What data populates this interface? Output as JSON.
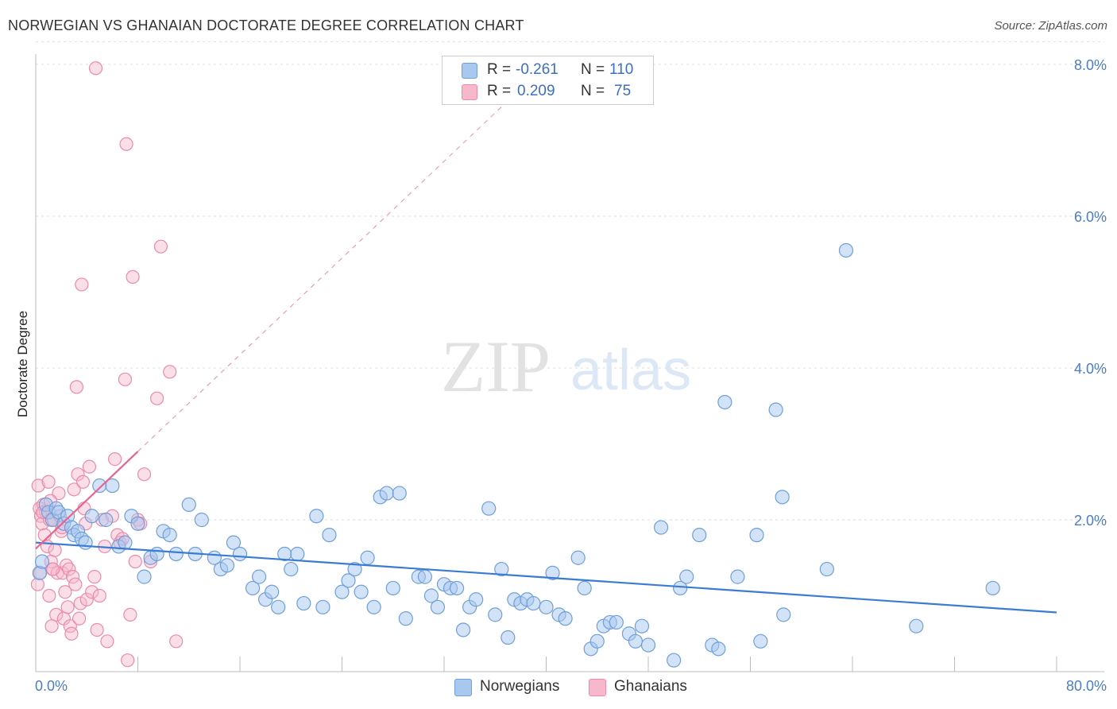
{
  "header": {
    "title": "NORWEGIAN VS GHANAIAN DOCTORATE DEGREE CORRELATION CHART",
    "source": "Source: ZipAtlas.com"
  },
  "legend": {
    "norwegian": {
      "r_label": "R =",
      "r_value": "-0.261",
      "n_label": "N =",
      "n_value": "110"
    },
    "ghanaian": {
      "r_label": "R =",
      "r_value": "0.209",
      "n_label": "N =",
      "n_value": "75"
    }
  },
  "bottom_legend": {
    "norwegians": "Norwegians",
    "ghanaians": "Ghanaians"
  },
  "watermark": {
    "zip": "ZIP",
    "atlas": "atlas"
  },
  "colors": {
    "blue_fill": "#a8c8f0",
    "blue_stroke": "#6f9fd8",
    "blue_line": "#3a7bd5",
    "pink_fill": "#f7b8cc",
    "pink_stroke": "#ec8aab",
    "pink_line": "#e8648f",
    "axis_text": "#4a7cc8",
    "grid": "#dddddd"
  },
  "chart_data": {
    "type": "scatter",
    "title": "NORWEGIAN VS GHANAIAN DOCTORATE DEGREE CORRELATION CHART",
    "xlabel": "",
    "ylabel": "Doctorate Degree",
    "xlim": [
      0,
      80
    ],
    "ylim": [
      0,
      8.3
    ],
    "x_tick_labels": [
      "0.0%",
      "80.0%"
    ],
    "y_ticks": [
      2,
      4,
      6,
      8
    ],
    "y_tick_labels": [
      "2.0%",
      "4.0%",
      "6.0%",
      "8.0%"
    ],
    "grid": true,
    "series": [
      {
        "name": "Norwegians",
        "r": -0.261,
        "n": 110,
        "trend": {
          "x": [
            0,
            80
          ],
          "y": [
            1.7,
            0.78
          ],
          "style": "solid"
        },
        "points": [
          [
            0.3,
            1.3
          ],
          [
            0.5,
            1.45
          ],
          [
            0.8,
            2.2
          ],
          [
            1.0,
            2.1
          ],
          [
            1.3,
            2.0
          ],
          [
            1.6,
            2.15
          ],
          [
            1.8,
            2.1
          ],
          [
            2.2,
            1.95
          ],
          [
            2.5,
            2.05
          ],
          [
            2.8,
            1.9
          ],
          [
            3.0,
            1.8
          ],
          [
            3.3,
            1.85
          ],
          [
            3.6,
            1.75
          ],
          [
            3.9,
            1.7
          ],
          [
            4.4,
            2.05
          ],
          [
            5.0,
            2.45
          ],
          [
            5.5,
            2.0
          ],
          [
            6.0,
            2.45
          ],
          [
            6.5,
            1.65
          ],
          [
            7.0,
            1.7
          ],
          [
            7.5,
            2.05
          ],
          [
            8.0,
            1.95
          ],
          [
            8.5,
            1.25
          ],
          [
            9.0,
            1.5
          ],
          [
            9.5,
            1.55
          ],
          [
            10.0,
            1.85
          ],
          [
            10.5,
            1.8
          ],
          [
            11.0,
            1.55
          ],
          [
            12.0,
            2.2
          ],
          [
            12.5,
            1.55
          ],
          [
            13.0,
            2.0
          ],
          [
            14.0,
            1.5
          ],
          [
            14.5,
            1.35
          ],
          [
            15.0,
            1.4
          ],
          [
            15.5,
            1.7
          ],
          [
            16.0,
            1.55
          ],
          [
            17.0,
            1.1
          ],
          [
            17.5,
            1.25
          ],
          [
            18.0,
            0.95
          ],
          [
            18.5,
            1.05
          ],
          [
            19.0,
            0.85
          ],
          [
            19.5,
            1.55
          ],
          [
            20.0,
            1.35
          ],
          [
            20.5,
            1.55
          ],
          [
            21.0,
            0.9
          ],
          [
            22.0,
            2.05
          ],
          [
            22.5,
            0.85
          ],
          [
            23.0,
            1.8
          ],
          [
            24.0,
            1.05
          ],
          [
            24.5,
            1.2
          ],
          [
            25.0,
            1.35
          ],
          [
            25.5,
            1.05
          ],
          [
            26.0,
            1.5
          ],
          [
            26.5,
            0.85
          ],
          [
            27.0,
            2.3
          ],
          [
            27.5,
            2.35
          ],
          [
            28.0,
            1.1
          ],
          [
            28.5,
            2.35
          ],
          [
            29.0,
            0.7
          ],
          [
            30.0,
            1.25
          ],
          [
            30.5,
            1.25
          ],
          [
            31.0,
            1.0
          ],
          [
            31.5,
            0.85
          ],
          [
            32.0,
            1.15
          ],
          [
            32.5,
            1.1
          ],
          [
            33.0,
            1.1
          ],
          [
            33.5,
            0.55
          ],
          [
            34.0,
            0.85
          ],
          [
            34.5,
            0.95
          ],
          [
            35.5,
            2.15
          ],
          [
            36.0,
            0.75
          ],
          [
            36.5,
            1.35
          ],
          [
            37.0,
            0.45
          ],
          [
            37.5,
            0.95
          ],
          [
            38.0,
            0.9
          ],
          [
            38.5,
            0.95
          ],
          [
            39.0,
            0.9
          ],
          [
            40.0,
            0.85
          ],
          [
            40.5,
            1.3
          ],
          [
            41.0,
            0.75
          ],
          [
            41.5,
            0.7
          ],
          [
            42.5,
            1.5
          ],
          [
            43.0,
            1.1
          ],
          [
            43.5,
            0.3
          ],
          [
            44.0,
            0.4
          ],
          [
            44.5,
            0.6
          ],
          [
            45.0,
            0.65
          ],
          [
            45.5,
            0.65
          ],
          [
            46.5,
            0.5
          ],
          [
            47.0,
            0.4
          ],
          [
            47.5,
            0.6
          ],
          [
            48.0,
            0.35
          ],
          [
            49.0,
            1.9
          ],
          [
            50.0,
            0.15
          ],
          [
            50.5,
            1.1
          ],
          [
            51.0,
            1.25
          ],
          [
            52.0,
            1.8
          ],
          [
            53.0,
            0.35
          ],
          [
            53.5,
            0.3
          ],
          [
            54.0,
            3.55
          ],
          [
            55.0,
            1.25
          ],
          [
            56.5,
            1.8
          ],
          [
            56.8,
            0.4
          ],
          [
            58.0,
            3.45
          ],
          [
            58.5,
            2.3
          ],
          [
            58.6,
            0.75
          ],
          [
            62.0,
            1.35
          ],
          [
            63.5,
            5.55
          ],
          [
            69.0,
            0.6
          ],
          [
            75.0,
            1.1
          ]
        ]
      },
      {
        "name": "Ghanaians",
        "r": 0.209,
        "n": 75,
        "trend": {
          "x": [
            0,
            8
          ],
          "y": [
            1.62,
            2.9
          ],
          "style": "solid",
          "extended": {
            "x": [
              8,
              37.5
            ],
            "y": [
              2.9,
              7.6
            ],
            "style": "dashed"
          }
        },
        "points": [
          [
            0.2,
            2.45
          ],
          [
            0.3,
            2.15
          ],
          [
            0.4,
            2.05
          ],
          [
            0.5,
            1.95
          ],
          [
            0.6,
            2.2
          ],
          [
            0.7,
            1.8
          ],
          [
            0.8,
            2.1
          ],
          [
            0.9,
            1.65
          ],
          [
            1.0,
            2.5
          ],
          [
            1.1,
            2.0
          ],
          [
            1.2,
            1.45
          ],
          [
            1.3,
            1.35
          ],
          [
            1.4,
            2.0
          ],
          [
            1.5,
            1.6
          ],
          [
            1.6,
            0.75
          ],
          [
            1.7,
            1.3
          ],
          [
            1.8,
            2.35
          ],
          [
            1.9,
            2.05
          ],
          [
            2.0,
            1.85
          ],
          [
            2.1,
            1.3
          ],
          [
            2.2,
            0.7
          ],
          [
            2.3,
            1.05
          ],
          [
            2.4,
            1.4
          ],
          [
            2.5,
            0.85
          ],
          [
            2.6,
            1.35
          ],
          [
            2.7,
            0.6
          ],
          [
            2.8,
            0.5
          ],
          [
            2.9,
            1.25
          ],
          [
            3.0,
            2.4
          ],
          [
            3.1,
            1.15
          ],
          [
            3.2,
            3.75
          ],
          [
            3.3,
            2.6
          ],
          [
            3.4,
            0.7
          ],
          [
            3.5,
            0.9
          ],
          [
            3.6,
            5.1
          ],
          [
            3.7,
            2.5
          ],
          [
            3.8,
            2.15
          ],
          [
            3.9,
            1.95
          ],
          [
            4.0,
            0.95
          ],
          [
            4.2,
            2.7
          ],
          [
            4.4,
            1.05
          ],
          [
            4.6,
            1.25
          ],
          [
            4.8,
            0.55
          ],
          [
            5.0,
            1.0
          ],
          [
            5.2,
            2.0
          ],
          [
            5.4,
            1.65
          ],
          [
            5.6,
            0.4
          ],
          [
            6.0,
            2.05
          ],
          [
            6.2,
            2.8
          ],
          [
            6.4,
            1.8
          ],
          [
            6.6,
            1.7
          ],
          [
            6.8,
            1.75
          ],
          [
            7.0,
            3.85
          ],
          [
            7.1,
            6.95
          ],
          [
            7.2,
            0.15
          ],
          [
            7.4,
            0.75
          ],
          [
            7.6,
            5.2
          ],
          [
            7.8,
            1.45
          ],
          [
            8.0,
            2.0
          ],
          [
            8.2,
            1.95
          ],
          [
            8.5,
            2.6
          ],
          [
            9.0,
            1.45
          ],
          [
            9.5,
            3.6
          ],
          [
            9.8,
            5.6
          ],
          [
            10.5,
            3.95
          ],
          [
            11.0,
            0.4
          ],
          [
            4.7,
            7.95
          ],
          [
            2.05,
            1.9
          ],
          [
            0.15,
            1.15
          ],
          [
            0.35,
            1.3
          ],
          [
            0.55,
            2.1
          ],
          [
            1.05,
            1.0
          ],
          [
            1.15,
            2.25
          ],
          [
            1.25,
            0.6
          ],
          [
            1.35,
            1.35
          ]
        ]
      }
    ]
  }
}
